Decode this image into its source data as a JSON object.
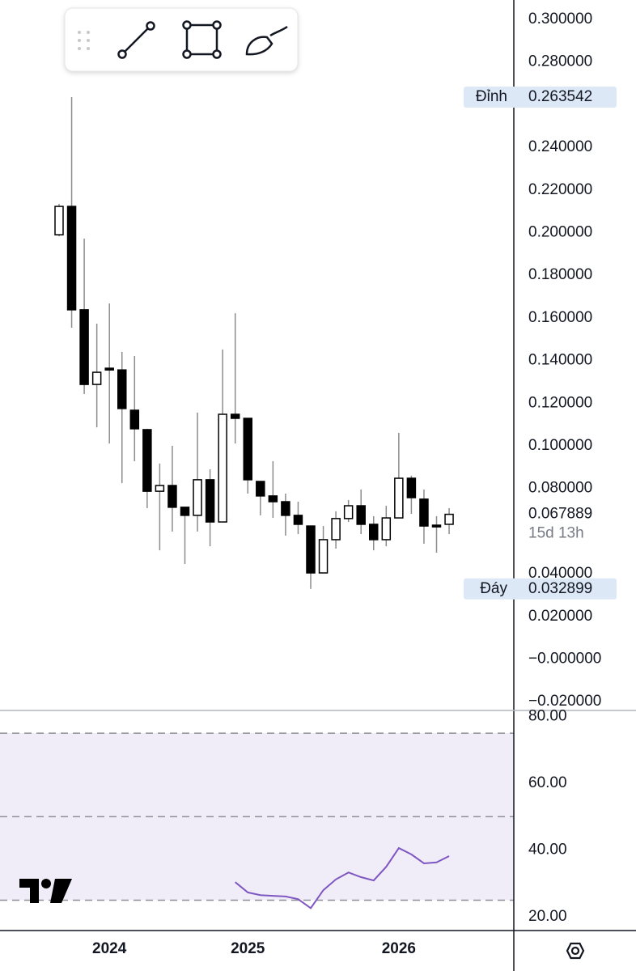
{
  "chart_data": [
    {
      "type": "candlestick",
      "categories": [
        null,
        null,
        null,
        null,
        "2024",
        null,
        null,
        null,
        null,
        null,
        null,
        null,
        null,
        null,
        null,
        "2025",
        null,
        null,
        null,
        null,
        null,
        null,
        null,
        null,
        null,
        null,
        null,
        "2026",
        null,
        null,
        null,
        null
      ],
      "open": [
        0.199,
        0.2123,
        0.1638,
        0.1288,
        0.1364,
        0.1356,
        0.1167,
        0.1076,
        0.0787,
        0.0814,
        0.0712,
        0.0674,
        0.0841,
        0.0643,
        0.1148,
        0.1129,
        0.0833,
        0.0765,
        0.0738,
        0.0674,
        0.0624,
        0.0404,
        0.056,
        0.0659,
        0.0719,
        0.0632,
        0.056,
        0.0662,
        0.0848,
        0.075,
        0.0628,
        0.0632
      ],
      "high": [
        0.2135,
        0.263542,
        0.1972,
        0.1573,
        0.1668,
        0.144,
        0.1421,
        0.108,
        0.0917,
        0.1,
        0.0712,
        0.1156,
        0.089,
        0.1452,
        0.1622,
        0.1129,
        0.0833,
        0.0928,
        0.0776,
        0.0738,
        0.0624,
        0.0624,
        0.0693,
        0.0746,
        0.0795,
        0.067,
        0.0719,
        0.1061,
        0.086,
        0.0795,
        0.067,
        0.0708
      ],
      "low": [
        0.1983,
        0.1554,
        0.1243,
        0.1087,
        0.1011,
        0.0825,
        0.0928,
        0.0708,
        0.051,
        0.0598,
        0.0446,
        0.0598,
        0.0529,
        0.0643,
        0.1011,
        0.0776,
        0.0674,
        0.0662,
        0.0579,
        0.0586,
        0.032899,
        0.0404,
        0.0518,
        0.0643,
        0.0586,
        0.051,
        0.0529,
        0.0662,
        0.0681,
        0.0541,
        0.0499,
        0.0586
      ],
      "close": [
        0.2123,
        0.1638,
        0.1288,
        0.1345,
        0.1356,
        0.1175,
        0.108,
        0.0787,
        0.0814,
        0.0712,
        0.0674,
        0.0841,
        0.0643,
        0.1148,
        0.1129,
        0.0841,
        0.0765,
        0.0738,
        0.0674,
        0.0632,
        0.0404,
        0.056,
        0.0659,
        0.0719,
        0.0632,
        0.056,
        0.0662,
        0.0848,
        0.0757,
        0.0624,
        0.062,
        0.067889
      ],
      "up_color": "#ffffff",
      "down_color": "#000000",
      "border_color": "#000000",
      "wick_color": "#8c8c8c",
      "ylim": [
        -0.0241,
        0.3091
      ],
      "yticks": [
        {
          "value": 0.3,
          "label": "0.300000"
        },
        {
          "value": 0.28,
          "label": "0.280000"
        },
        {
          "value": 0.24,
          "label": "0.240000"
        },
        {
          "value": 0.22,
          "label": "0.220000"
        },
        {
          "value": 0.2,
          "label": "0.200000"
        },
        {
          "value": 0.18,
          "label": "0.180000"
        },
        {
          "value": 0.16,
          "label": "0.160000"
        },
        {
          "value": 0.14,
          "label": "0.140000"
        },
        {
          "value": 0.12,
          "label": "0.120000"
        },
        {
          "value": 0.1,
          "label": "0.100000"
        },
        {
          "value": 0.08,
          "label": "0.080000"
        },
        {
          "value": 0.04,
          "label": "0.040000"
        },
        {
          "value": 0.02,
          "label": "0.020000"
        },
        {
          "value": 0,
          "label": "−0.000000"
        },
        {
          "value": -0.02,
          "label": "−0.020000"
        }
      ],
      "high_marker": {
        "name": "Đỉnh",
        "value": 0.263542
      },
      "low_marker": {
        "name": "Đáy",
        "value": 0.032899
      },
      "last_price": 0.067889,
      "countdown": "15d 13h"
    },
    {
      "type": "line",
      "values": [
        null,
        null,
        null,
        null,
        null,
        null,
        null,
        null,
        null,
        null,
        null,
        null,
        null,
        null,
        30.4,
        27.3,
        26.5,
        26.3,
        26.1,
        25.3,
        22.6,
        28.0,
        31.2,
        33.3,
        31.9,
        30.9,
        35.0,
        40.6,
        38.7,
        36.0,
        36.3,
        38.2
      ],
      "color": "#7e57c2",
      "ylim": [
        15.9,
        81.8
      ],
      "yticks": [
        {
          "value": 80,
          "label": "80.00"
        },
        {
          "value": 60,
          "label": "60.00"
        },
        {
          "value": 40,
          "label": "40.00"
        },
        {
          "value": 20,
          "label": "20.00"
        }
      ],
      "bands": [
        75,
        50,
        25
      ]
    }
  ]
}
